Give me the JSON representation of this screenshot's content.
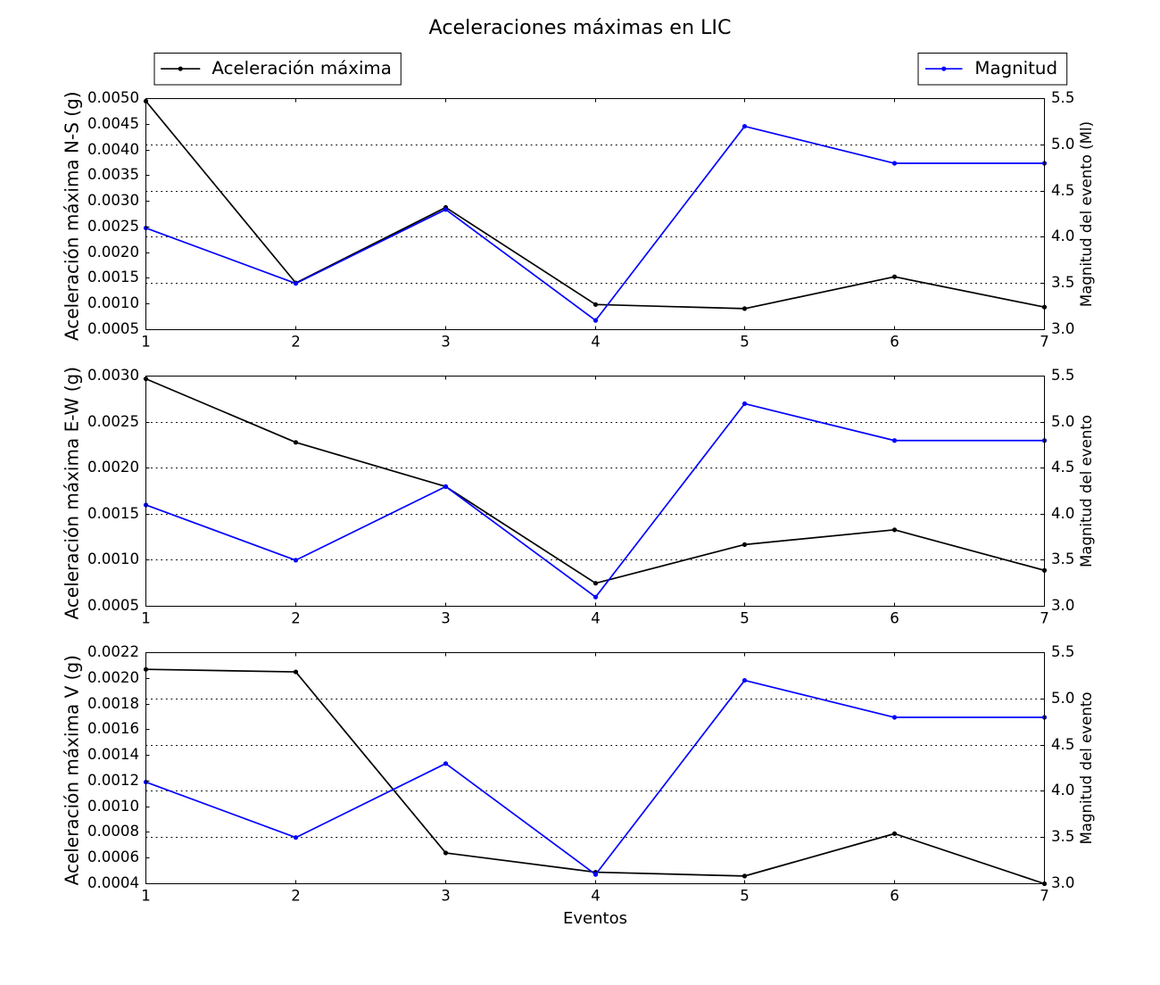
{
  "figure_title": "Aceleraciones máximas en LIC",
  "legend": {
    "acceleration": {
      "label": "Aceleración máxima",
      "color": "#000000"
    },
    "magnitude": {
      "label": "Magnitud",
      "color": "#0000ff"
    }
  },
  "x_axis": {
    "label": "Eventos",
    "tick_labels": [
      "1",
      "2",
      "3",
      "4",
      "5",
      "6",
      "7"
    ]
  },
  "colors": {
    "acceleration_line": "#000000",
    "magnitude_line": "#0000ff",
    "grid": "#000000",
    "background": "#ffffff"
  },
  "chart_data": [
    {
      "type": "line",
      "subplot": "N-S",
      "x": [
        1,
        2,
        3,
        4,
        5,
        6,
        7
      ],
      "xlabel": "",
      "left_axis": {
        "label": "Aceleración máxima N-S (g)",
        "lim": [
          0.0005,
          0.005
        ],
        "tick_labels": [
          "0.0050",
          "0.0045",
          "0.0040",
          "0.0035",
          "0.0030",
          "0.0025",
          "0.0020",
          "0.0015",
          "0.0010",
          "0.0005"
        ],
        "tick_values": [
          0.005,
          0.0045,
          0.004,
          0.0035,
          0.003,
          0.0025,
          0.002,
          0.0015,
          0.001,
          0.0005
        ]
      },
      "right_axis": {
        "label": "Magnitud del evento (Ml)",
        "lim": [
          3.0,
          5.5
        ],
        "tick_labels": [
          "5.5",
          "5.0",
          "4.5",
          "4.0",
          "3.5",
          "3.0"
        ],
        "tick_values": [
          5.5,
          5.0,
          4.5,
          4.0,
          3.5,
          3.0
        ]
      },
      "grid": {
        "horizontal": true,
        "style": "dotted",
        "at_right_ticks": [
          5.0,
          4.5,
          4.0,
          3.5
        ]
      },
      "series": [
        {
          "name": "Aceleración máxima",
          "axis": "left",
          "color": "#000000",
          "values": [
            0.00495,
            0.00141,
            0.00288,
            0.00099,
            0.00091,
            0.00153,
            0.00094
          ]
        },
        {
          "name": "Magnitud",
          "axis": "right",
          "color": "#0000ff",
          "values": [
            4.1,
            3.5,
            4.3,
            3.1,
            5.2,
            4.8,
            4.8
          ]
        }
      ]
    },
    {
      "type": "line",
      "subplot": "E-W",
      "x": [
        1,
        2,
        3,
        4,
        5,
        6,
        7
      ],
      "xlabel": "",
      "left_axis": {
        "label": "Aceleración máxima E-W (g)",
        "lim": [
          0.0005,
          0.003
        ],
        "tick_labels": [
          "0.0030",
          "0.0025",
          "0.0020",
          "0.0015",
          "0.0010",
          "0.0005"
        ],
        "tick_values": [
          0.003,
          0.0025,
          0.002,
          0.0015,
          0.001,
          0.0005
        ]
      },
      "right_axis": {
        "label": "Magnitud del evento",
        "lim": [
          3.0,
          5.5
        ],
        "tick_labels": [
          "5.5",
          "5.0",
          "4.5",
          "4.0",
          "3.5",
          "3.0"
        ],
        "tick_values": [
          5.5,
          5.0,
          4.5,
          4.0,
          3.5,
          3.0
        ]
      },
      "grid": {
        "horizontal": true,
        "style": "dotted",
        "at_right_ticks": [
          5.0,
          4.5,
          4.0,
          3.5
        ]
      },
      "series": [
        {
          "name": "Aceleración máxima",
          "axis": "left",
          "color": "#000000",
          "values": [
            0.00297,
            0.00228,
            0.0018,
            0.00075,
            0.00117,
            0.00133,
            0.00089
          ]
        },
        {
          "name": "Magnitud",
          "axis": "right",
          "color": "#0000ff",
          "values": [
            4.1,
            3.5,
            4.3,
            3.1,
            5.2,
            4.8,
            4.8
          ]
        }
      ]
    },
    {
      "type": "line",
      "subplot": "V",
      "x": [
        1,
        2,
        3,
        4,
        5,
        6,
        7
      ],
      "xlabel": "Eventos",
      "left_axis": {
        "label": "Aceleración máxima V (g)",
        "lim": [
          0.0004,
          0.0022
        ],
        "tick_labels": [
          "0.0022",
          "0.0020",
          "0.0018",
          "0.0016",
          "0.0014",
          "0.0012",
          "0.0010",
          "0.0008",
          "0.0006",
          "0.0004"
        ],
        "tick_values": [
          0.0022,
          0.002,
          0.0018,
          0.0016,
          0.0014,
          0.0012,
          0.001,
          0.0008,
          0.0006,
          0.0004
        ]
      },
      "right_axis": {
        "label": "Magnitud del evento",
        "lim": [
          3.0,
          5.5
        ],
        "tick_labels": [
          "5.5",
          "5.0",
          "4.5",
          "4.0",
          "3.5",
          "3.0"
        ],
        "tick_values": [
          5.5,
          5.0,
          4.5,
          4.0,
          3.5,
          3.0
        ]
      },
      "grid": {
        "horizontal": true,
        "style": "dotted",
        "at_right_ticks": [
          5.0,
          4.5,
          4.0,
          3.5
        ]
      },
      "series": [
        {
          "name": "Aceleración máxima",
          "axis": "left",
          "color": "#000000",
          "values": [
            0.00207,
            0.00205,
            0.00064,
            0.00049,
            0.00046,
            0.00079,
            0.0004
          ]
        },
        {
          "name": "Magnitud",
          "axis": "right",
          "color": "#0000ff",
          "values": [
            4.1,
            3.5,
            4.3,
            3.1,
            5.2,
            4.8,
            4.8
          ]
        }
      ]
    }
  ]
}
